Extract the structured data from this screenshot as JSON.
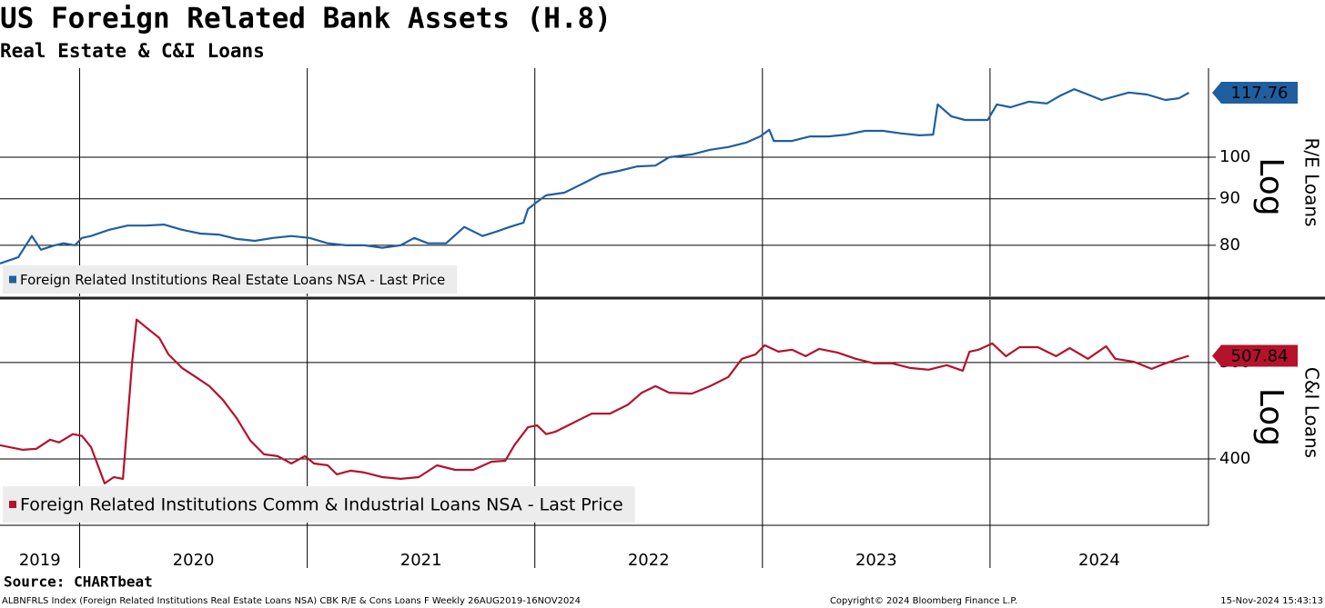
{
  "title": "US Foreign Related Bank Assets (H.8)",
  "subtitle": "Real Estate & C&I Loans",
  "source": "Source:  CHARTbeat",
  "footer": {
    "left": "ALBNFRLS Index (Foreign Related Institutions Real Estate Loans NSA) CBK R/E & Cons Loans F  Weekly 26AUG2019-16NOV2024",
    "center": "Copyright© 2024 Bloomberg Finance L.P.",
    "right": "15-Nov-2024 15:43:13"
  },
  "chart_data": [
    {
      "type": "line",
      "log_scale": true,
      "grid": true,
      "scale_note": "Log",
      "y_label": "R/E Loans",
      "legend": "bottom-left",
      "xlim": [
        2019.65,
        2024.96
      ],
      "xticks": [
        2020,
        2021,
        2022,
        2023,
        2024
      ],
      "ylim": [
        70.3,
        125.3
      ],
      "yticks": [
        80,
        90,
        100
      ],
      "series": [
        {
          "name": "Foreign Related Institutions Real Estate Loans NSA - Last Price",
          "color": "#1f5fa0",
          "x": [
            2019.65,
            2019.73,
            2019.79,
            2019.83,
            2019.89,
            2019.93,
            2019.98,
            2020.01,
            2020.05,
            2020.13,
            2020.21,
            2020.29,
            2020.37,
            2020.45,
            2020.53,
            2020.61,
            2020.69,
            2020.77,
            2020.85,
            2020.93,
            2021.01,
            2021.09,
            2021.17,
            2021.25,
            2021.33,
            2021.41,
            2021.47,
            2021.53,
            2021.61,
            2021.69,
            2021.77,
            2021.83,
            2021.89,
            2021.95,
            2021.97,
            2022.01,
            2022.05,
            2022.13,
            2022.21,
            2022.29,
            2022.37,
            2022.45,
            2022.53,
            2022.59,
            2022.69,
            2022.77,
            2022.85,
            2022.93,
            2022.99,
            2023.03,
            2023.05,
            2023.13,
            2023.21,
            2023.29,
            2023.37,
            2023.45,
            2023.53,
            2023.61,
            2023.69,
            2023.75,
            2023.77,
            2023.83,
            2023.89,
            2023.99,
            2024.03,
            2024.09,
            2024.17,
            2024.25,
            2024.31,
            2024.37,
            2024.43,
            2024.49,
            2024.61,
            2024.69,
            2024.77,
            2024.83,
            2024.874
          ],
          "values": [
            76.4,
            77.6,
            81.9,
            79.1,
            80.0,
            80.4,
            80.0,
            81.5,
            81.9,
            83.2,
            84.1,
            84.1,
            84.3,
            83.2,
            82.4,
            82.2,
            81.3,
            80.9,
            81.5,
            81.9,
            81.5,
            80.4,
            80.0,
            80.0,
            79.5,
            80.0,
            81.5,
            80.4,
            80.4,
            83.8,
            81.9,
            82.8,
            83.8,
            84.7,
            87.7,
            89.3,
            90.8,
            91.4,
            93.5,
            95.7,
            96.6,
            97.7,
            97.9,
            100.0,
            100.7,
            101.9,
            102.6,
            103.8,
            105.4,
            107.2,
            104.2,
            104.2,
            105.4,
            105.4,
            105.9,
            106.9,
            106.9,
            106.2,
            105.7,
            105.9,
            114.3,
            110.9,
            109.9,
            109.9,
            114.3,
            113.5,
            115.1,
            114.6,
            116.9,
            118.8,
            117.2,
            115.6,
            117.8,
            117.2,
            115.6,
            116.1,
            117.76
          ]
        }
      ]
    },
    {
      "type": "line",
      "log_scale": true,
      "grid": true,
      "scale_note": "Log",
      "y_label": "C&I Loans",
      "legend": "bottom-left",
      "xlim": [
        2019.65,
        2024.96
      ],
      "xticks": [
        {
          "value": 2019,
          "label": "2019"
        },
        {
          "value": 2020,
          "label": "2020"
        },
        {
          "value": 2021,
          "label": "2021"
        },
        {
          "value": 2022,
          "label": "2022"
        },
        {
          "value": 2023,
          "label": "2023"
        },
        {
          "value": 2024,
          "label": "2024"
        }
      ],
      "ylim": [
        343,
        578
      ],
      "yticks": [
        400,
        500
      ],
      "series": [
        {
          "name": "Foreign Related Institutions Comm & Industrial Loans NSA - Last Price",
          "color": "#b5122b",
          "x": [
            2019.65,
            2019.75,
            2019.81,
            2019.87,
            2019.91,
            2019.97,
            2020.01,
            2020.05,
            2020.11,
            2020.15,
            2020.19,
            2020.23,
            2020.25,
            2020.29,
            2020.35,
            2020.39,
            2020.45,
            2020.51,
            2020.57,
            2020.63,
            2020.69,
            2020.75,
            2020.81,
            2020.87,
            2020.93,
            2020.99,
            2021.03,
            2021.09,
            2021.13,
            2021.19,
            2021.25,
            2021.33,
            2021.41,
            2021.49,
            2021.57,
            2021.65,
            2021.73,
            2021.81,
            2021.87,
            2021.91,
            2021.97,
            2022.01,
            2022.05,
            2022.09,
            2022.17,
            2022.25,
            2022.33,
            2022.41,
            2022.47,
            2022.53,
            2022.59,
            2022.69,
            2022.77,
            2022.85,
            2022.91,
            2022.97,
            2023.01,
            2023.07,
            2023.13,
            2023.19,
            2023.25,
            2023.33,
            2023.41,
            2023.49,
            2023.57,
            2023.65,
            2023.73,
            2023.81,
            2023.88,
            2023.91,
            2023.95,
            2024.01,
            2024.07,
            2024.13,
            2024.21,
            2024.29,
            2024.35,
            2024.43,
            2024.51,
            2024.55,
            2024.63,
            2024.71,
            2024.77,
            2024.83,
            2024.874
          ],
          "values": [
            412.9,
            408.5,
            409.5,
            418.2,
            415.6,
            423.6,
            421.9,
            411.1,
            377.9,
            383.5,
            381.9,
            499.0,
            552.3,
            542.9,
            529.2,
            509.5,
            493.7,
            483.5,
            473.4,
            458.4,
            439.5,
            417.3,
            404.3,
            402.6,
            395.8,
            402.6,
            395.8,
            394.1,
            386.0,
            389.2,
            387.6,
            383.5,
            381.9,
            383.5,
            394.1,
            390.0,
            390.0,
            397.4,
            398.3,
            412.9,
            430.4,
            432.2,
            423.6,
            425.9,
            435.0,
            444.2,
            444.2,
            453.7,
            466.3,
            473.4,
            466.3,
            465.3,
            473.4,
            483.5,
            504.3,
            509.5,
            520.4,
            512.8,
            515.0,
            507.4,
            516.0,
            511.7,
            504.3,
            499.0,
            499.0,
            493.7,
            491.7,
            496.9,
            490.6,
            512.8,
            515.0,
            522.6,
            507.4,
            518.1,
            518.1,
            507.4,
            517.0,
            504.3,
            519.2,
            504.3,
            501.0,
            492.7,
            499.0,
            504.3,
            507.84
          ]
        }
      ]
    }
  ]
}
